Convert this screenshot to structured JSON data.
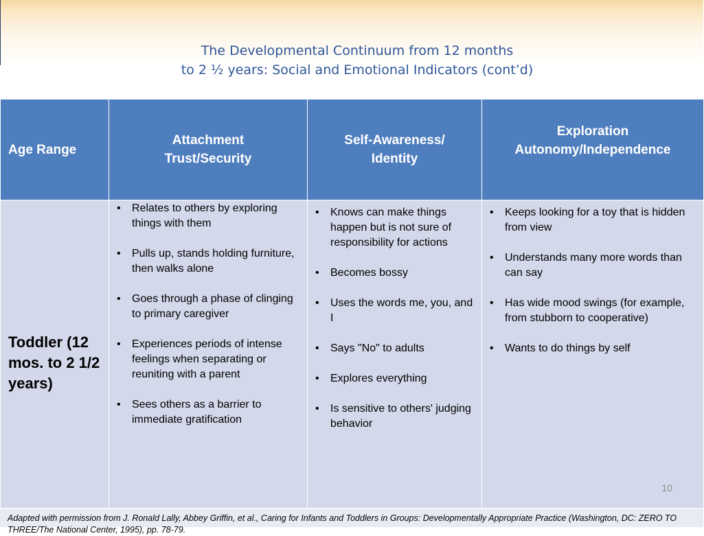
{
  "title": {
    "line1": "The Developmental Continuum from 12 months",
    "line2": "to 2 ½ years: Social and Emotional Indicators (cont’d)"
  },
  "table": {
    "headers": {
      "age_range": "Age Range",
      "attachment_line1": "Attachment",
      "attachment_line2": "Trust/Security",
      "self_awareness_line1": "Self-Awareness/",
      "self_awareness_line2": "Identity",
      "exploration_line1": "Exploration",
      "exploration_line2": "Autonomy/Independence"
    },
    "row": {
      "age": "Toddler (12 mos. to 2 1/2 years)",
      "attachment_items": [
        "Relates to others by exploring things with them",
        "Pulls up, stands holding furniture, then walks alone",
        "Goes through a phase of clinging to primary caregiver",
        "Experiences periods of intense feelings when separating or reuniting with a parent",
        "Sees others as a barrier to immediate gratification"
      ],
      "self_awareness_items": [
        "Knows can make things happen but is not sure of responsibility for actions",
        "Becomes bossy",
        "Uses the words me, you,   and I",
        "Says \"No\" to adults",
        "Explores everything",
        "Is sensitive to others' judging behavior"
      ],
      "exploration_items": [
        "Keeps looking for a toy that is hidden from view",
        "Understands many more words than can say",
        "Has wide mood swings (for example, from stubborn to cooperative)",
        "Wants to do things by self"
      ]
    }
  },
  "page_number": "10",
  "footnote": "Adapted with permission from J. Ronald Lally, Abbey Griffin, et al., Caring for Infants and Toddlers in Groups: Developmentally Appropriate Practice (Washington, DC: ZERO TO THREE/The National Center, 1995), pp. 78-79."
}
